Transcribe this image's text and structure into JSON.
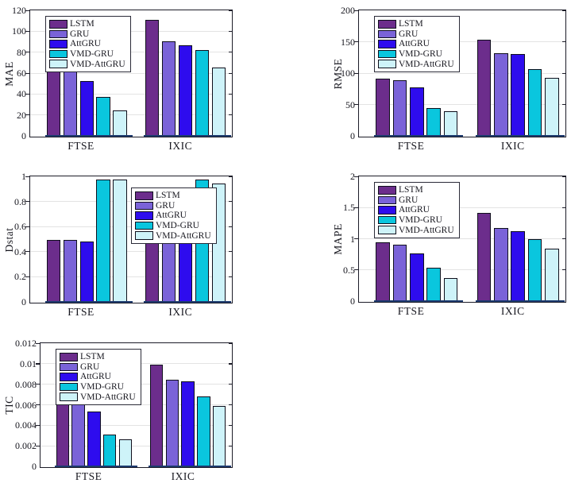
{
  "figure": {
    "background": "#ffffff",
    "description": "Five grouped bar charts comparing forecasting models on FTSE and IXIC"
  },
  "palette": {
    "series_colors": [
      "#6C2D8C",
      "#7A63D8",
      "#2E0CEE",
      "#0AC6DE",
      "#CEF3F9"
    ],
    "bar_edge": "#0f0f1c",
    "axis": "#1c1c28",
    "grid": "#e3e3e3",
    "baseline": "#1d3a6e",
    "text": "#16161e"
  },
  "legend": {
    "entries": [
      "LSTM",
      "GRU",
      "AttGRU",
      "VMD-GRU",
      "VMD-AttGRU"
    ]
  },
  "chart_data": [
    {
      "id": "mae",
      "type": "bar",
      "title": "",
      "xlabel": "",
      "ylabel": "MAE",
      "ylim": [
        0,
        120
      ],
      "yticks": [
        "0",
        "20",
        "40",
        "60",
        "80",
        "100",
        "120"
      ],
      "categories": [
        "FTSE",
        "IXIC"
      ],
      "grid": true,
      "legend_position": "top-left",
      "series": [
        {
          "name": "LSTM",
          "values": [
            65,
            112
          ]
        },
        {
          "name": "GRU",
          "values": [
            63,
            91
          ]
        },
        {
          "name": "AttGRU",
          "values": [
            53,
            87
          ]
        },
        {
          "name": "VMD-GRU",
          "values": [
            38,
            83
          ]
        },
        {
          "name": "VMD-AttGRU",
          "values": [
            25,
            66
          ]
        }
      ]
    },
    {
      "id": "rmse",
      "type": "bar",
      "title": "",
      "xlabel": "",
      "ylabel": "RMSE",
      "ylim": [
        0,
        200
      ],
      "yticks": [
        "0",
        "50",
        "100",
        "150",
        "200"
      ],
      "categories": [
        "FTSE",
        "IXIC"
      ],
      "grid": true,
      "legend_position": "top-left",
      "series": [
        {
          "name": "LSTM",
          "values": [
            92,
            155
          ]
        },
        {
          "name": "GRU",
          "values": [
            90,
            133
          ]
        },
        {
          "name": "AttGRU",
          "values": [
            78,
            132
          ]
        },
        {
          "name": "VMD-GRU",
          "values": [
            46,
            108
          ]
        },
        {
          "name": "VMD-AttGRU",
          "values": [
            40,
            94
          ]
        }
      ]
    },
    {
      "id": "dstat",
      "type": "bar",
      "title": "",
      "xlabel": "",
      "ylabel": "Dstat",
      "ylim": [
        0,
        1
      ],
      "yticks": [
        "0",
        "0.2",
        "0.4",
        "0.6",
        "0.8",
        "1"
      ],
      "categories": [
        "FTSE",
        "IXIC"
      ],
      "grid": true,
      "legend_position": "top-center",
      "series": [
        {
          "name": "LSTM",
          "values": [
            0.5,
            0.5
          ]
        },
        {
          "name": "GRU",
          "values": [
            0.5,
            0.5
          ]
        },
        {
          "name": "AttGRU",
          "values": [
            0.49,
            0.49
          ]
        },
        {
          "name": "VMD-GRU",
          "values": [
            0.98,
            0.98
          ]
        },
        {
          "name": "VMD-AttGRU",
          "values": [
            0.98,
            0.95
          ]
        }
      ]
    },
    {
      "id": "mape",
      "type": "bar",
      "title": "",
      "xlabel": "",
      "ylabel": "MAPE",
      "ylim": [
        0,
        2
      ],
      "yticks": [
        "0",
        "0.5",
        "1",
        "1.5",
        "2"
      ],
      "categories": [
        "FTSE",
        "IXIC"
      ],
      "grid": true,
      "legend_position": "top-left",
      "series": [
        {
          "name": "LSTM",
          "values": [
            0.95,
            1.43
          ]
        },
        {
          "name": "GRU",
          "values": [
            0.92,
            1.18
          ]
        },
        {
          "name": "AttGRU",
          "values": [
            0.78,
            1.13
          ]
        },
        {
          "name": "VMD-GRU",
          "values": [
            0.55,
            1.01
          ]
        },
        {
          "name": "VMD-AttGRU",
          "values": [
            0.38,
            0.86
          ]
        }
      ]
    },
    {
      "id": "tic",
      "type": "bar",
      "title": "",
      "xlabel": "",
      "ylabel": "TIC",
      "ylim": [
        0,
        0.012
      ],
      "yticks": [
        "0",
        "0.002",
        "0.004",
        "0.006",
        "0.008",
        "0.01",
        "0.012"
      ],
      "categories": [
        "FTSE",
        "IXIC"
      ],
      "grid": true,
      "legend_position": "top-left",
      "series": [
        {
          "name": "LSTM",
          "values": [
            0.0063,
            0.01
          ]
        },
        {
          "name": "GRU",
          "values": [
            0.0062,
            0.0085
          ]
        },
        {
          "name": "AttGRU",
          "values": [
            0.0054,
            0.0084
          ]
        },
        {
          "name": "VMD-GRU",
          "values": [
            0.0032,
            0.0069
          ]
        },
        {
          "name": "VMD-AttGRU",
          "values": [
            0.0027,
            0.006
          ]
        }
      ]
    }
  ]
}
